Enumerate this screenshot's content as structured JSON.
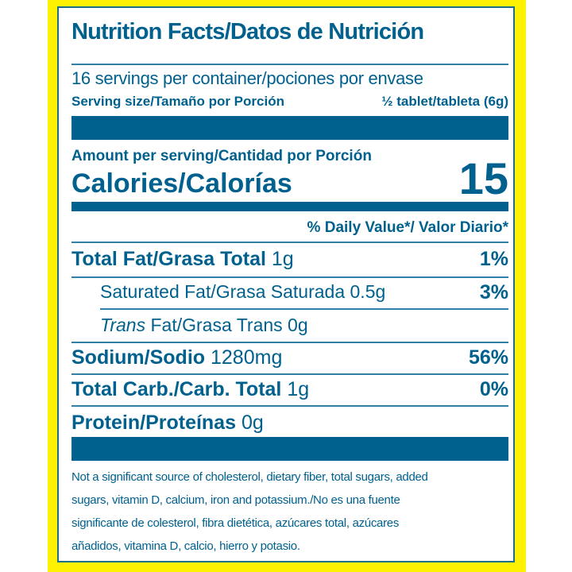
{
  "title": "Nutrition Facts/Datos de Nutrición",
  "servings": "16 servings per container/pociones por envase",
  "serving_size": {
    "label": "Serving size/Tamaño por Porción",
    "value": "½ tablet/tableta (6g)"
  },
  "amount_per_serving": "Amount per serving/Cantidad por Porción",
  "calories": {
    "label": "Calories/Calorías",
    "value": "15"
  },
  "daily_value_header": "% Daily Value*/ Valor Diario*",
  "nutrients": [
    {
      "name": "Total Fat/Grasa Total",
      "amount": "1g",
      "dv": "1%"
    },
    {
      "name": "Saturated Fat/Grasa Saturada",
      "amount": "0.5g",
      "dv": "3%"
    },
    {
      "name_italic": "Trans",
      "name": "Fat/Grasa Trans",
      "amount": "0g",
      "dv": ""
    },
    {
      "name": "Sodium/Sodio",
      "amount": "1280mg",
      "dv": "56%"
    },
    {
      "name": "Total Carb./Carb. Total",
      "amount": "1g",
      "dv": "0%"
    },
    {
      "name": "Protein/Proteínas",
      "amount": "0g",
      "dv": ""
    }
  ],
  "footnote": [
    "Not a significant source of cholesterol, dietary fiber, total sugars, added",
    "sugars, vitamin D, calcium, iron and potassium./No es una fuente",
    "significante de colesterol, fibra dietética, azúcares total, azúcares",
    "añadidos, vitamina D, calcio, hierro y potasio."
  ],
  "colors": {
    "text": "#00608e",
    "border": "#fff200",
    "background": "#ffffff"
  }
}
